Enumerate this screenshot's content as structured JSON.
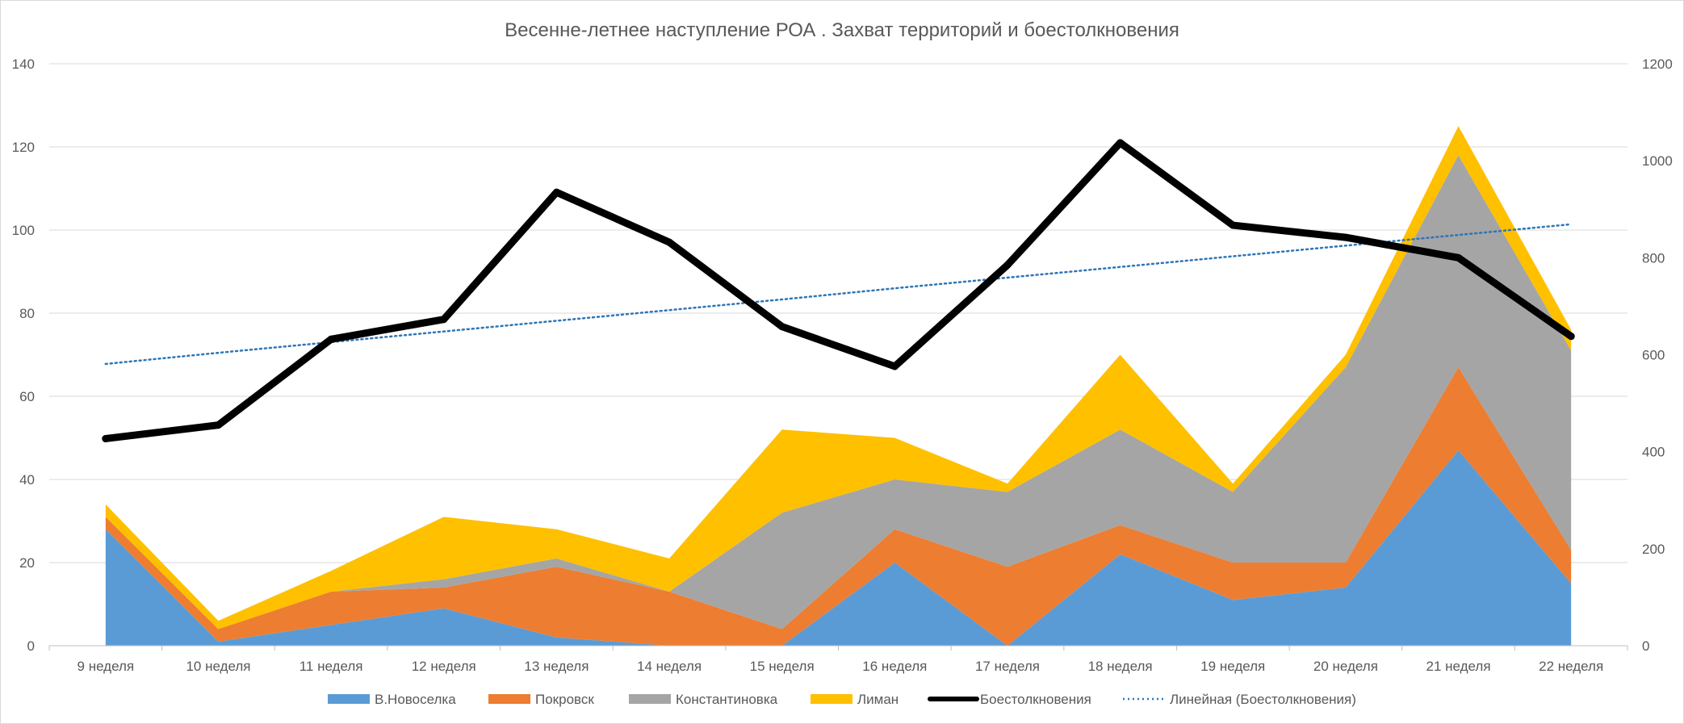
{
  "chart_data": {
    "type": "area",
    "title": "Весенне-летнее наступление РОА . Захват территорий и боестолкновения",
    "categories": [
      "9 неделя",
      "10 неделя",
      "11 неделя",
      "12 неделя",
      "13 неделя",
      "14 неделя",
      "15 неделя",
      "16 неделя",
      "17 неделя",
      "18 неделя",
      "19 неделя",
      "20 неделя",
      "21 неделя",
      "22 неделя"
    ],
    "y_left": {
      "min": 0,
      "max": 140,
      "step": 20,
      "ticks": [
        "0",
        "20",
        "40",
        "60",
        "80",
        "100",
        "120",
        "140"
      ]
    },
    "y_right": {
      "min": 0,
      "max": 1200,
      "step": 200,
      "ticks": [
        "0",
        "200",
        "400",
        "600",
        "800",
        "1000",
        "1200"
      ]
    },
    "grid": true,
    "legend_position": "bottom",
    "series": [
      {
        "name": "В.Новоселка",
        "kind": "stacked-area",
        "axis": "left",
        "color": "#5b9bd5",
        "values": [
          28,
          1,
          5,
          9,
          2,
          0,
          0,
          20,
          0,
          22,
          11,
          14,
          47,
          15
        ]
      },
      {
        "name": "Покровск",
        "kind": "stacked-area",
        "axis": "left",
        "color": "#ed7d31",
        "values": [
          3,
          3,
          8,
          5,
          17,
          13,
          4,
          8,
          19,
          7,
          9,
          6,
          20,
          8
        ]
      },
      {
        "name": "Константиновка",
        "kind": "stacked-area",
        "axis": "left",
        "color": "#a5a5a5",
        "values": [
          0,
          0,
          0,
          2,
          2,
          0,
          28,
          12,
          18,
          23,
          17,
          47,
          51,
          48
        ]
      },
      {
        "name": "Лиман",
        "kind": "stacked-area",
        "axis": "left",
        "color": "#ffc000",
        "values": [
          3,
          2,
          5,
          15,
          7,
          8,
          20,
          10,
          2,
          18,
          2,
          3,
          7,
          5
        ]
      },
      {
        "name": "Боестолкновения",
        "kind": "line",
        "axis": "right",
        "color": "#000000",
        "values": [
          427,
          455,
          632,
          673,
          935,
          832,
          658,
          576,
          785,
          1037,
          867,
          842,
          800,
          638
        ]
      },
      {
        "name": "Линейная (Боестолкновения)",
        "kind": "trendline",
        "axis": "right",
        "color": "#2e75b6",
        "values": [
          581,
          604,
          626,
          648,
          670,
          692,
          714,
          737,
          759,
          781,
          803,
          825,
          847,
          869
        ]
      }
    ]
  }
}
